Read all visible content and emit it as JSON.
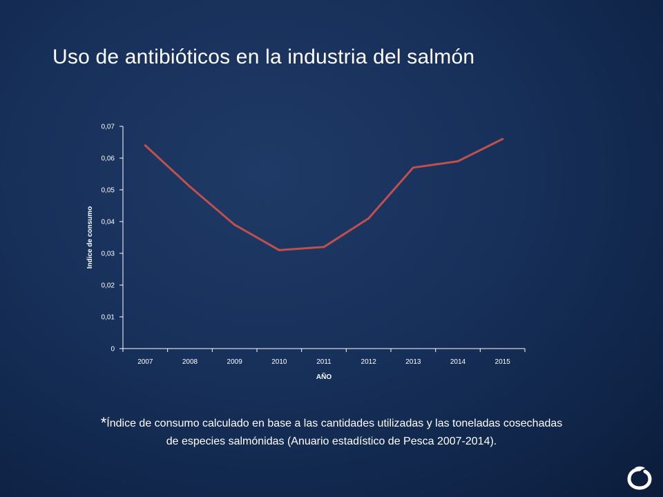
{
  "slide": {
    "title": "Uso de antibióticos en la industria del salmón",
    "footnote_star": "*",
    "footnote_line1": "Índice de consumo calculado en base a las cantidades utilizadas y las toneladas cosechadas",
    "footnote_line2": "de especies salmónidas (Anuario estadístico de Pesca 2007-2014)."
  },
  "colors": {
    "series_line": "#c0504d",
    "axis": "#ffffff"
  },
  "logo_icon": "salmon-swirl-logo-icon",
  "chart_data": {
    "type": "line",
    "title": "",
    "xlabel": "AÑO",
    "ylabel": "Indice de consumo",
    "categories": [
      "2007",
      "2008",
      "2009",
      "2010",
      "2011",
      "2012",
      "2013",
      "2014",
      "2015"
    ],
    "series": [
      {
        "values": [
          0.064,
          0.051,
          0.039,
          0.031,
          0.032,
          0.041,
          0.057,
          0.059,
          0.066
        ]
      }
    ],
    "ylim": [
      0,
      0.07
    ],
    "yticks": [
      "0",
      "0,01",
      "0,02",
      "0,03",
      "0,04",
      "0,05",
      "0,06",
      "0,07"
    ],
    "grid": false,
    "legend": "none"
  }
}
